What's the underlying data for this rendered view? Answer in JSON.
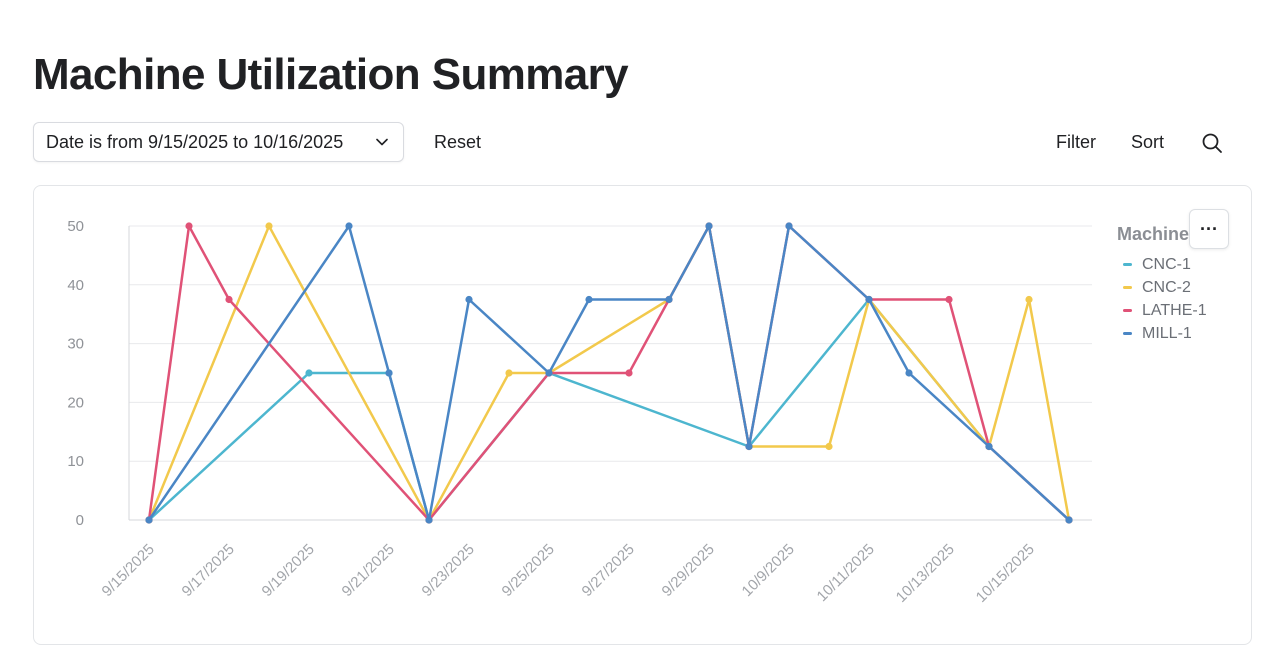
{
  "page": {
    "title": "Machine Utilization Summary"
  },
  "toolbar": {
    "date_filter_label": "Date is from 9/15/2025 to 10/16/2025",
    "reset_label": "Reset",
    "filter_label": "Filter",
    "sort_label": "Sort",
    "search_icon": "search-icon",
    "chevron_icon": "chevron-down-icon"
  },
  "card": {
    "more_label": "···",
    "more_icon": "more-horizontal-icon"
  },
  "legend": {
    "title": "Machine",
    "items": [
      {
        "name": "CNC-1",
        "color": "#4DB6CF"
      },
      {
        "name": "CNC-2",
        "color": "#F2C94C"
      },
      {
        "name": "LATHE-1",
        "color": "#E05277"
      },
      {
        "name": "MILL-1",
        "color": "#4A86C5"
      }
    ]
  },
  "chart_data": {
    "type": "line",
    "title": "Machine Utilization Summary",
    "xlabel": "",
    "ylabel": "",
    "ylim": [
      0,
      50
    ],
    "yticks": [
      0,
      10,
      20,
      30,
      40,
      50
    ],
    "grid": true,
    "legend_title": "Machine",
    "legend_position": "right",
    "x": [
      "9/15/2025",
      "9/16/2025",
      "9/17/2025",
      "9/18/2025",
      "9/19/2025",
      "9/20/2025",
      "9/21/2025",
      "9/22/2025",
      "9/23/2025",
      "9/24/2025",
      "9/25/2025",
      "9/26/2025",
      "9/27/2025",
      "9/28/2025",
      "9/29/2025",
      "9/30/2025",
      "10/9/2025",
      "10/10/2025",
      "10/11/2025",
      "10/12/2025",
      "10/13/2025",
      "10/14/2025",
      "10/15/2025",
      "10/16/2025"
    ],
    "x_tick_labels": [
      "9/15/2025",
      "9/17/2025",
      "9/19/2025",
      "9/21/2025",
      "9/23/2025",
      "9/25/2025",
      "9/27/2025",
      "9/29/2025",
      "10/9/2025",
      "10/11/2025",
      "10/13/2025",
      "10/15/2025"
    ],
    "x_tick_indices": [
      0,
      2,
      4,
      6,
      8,
      10,
      12,
      14,
      16,
      18,
      20,
      22
    ],
    "series": [
      {
        "name": "CNC-1",
        "color": "#4DB6CF",
        "points": [
          [
            0,
            0
          ],
          [
            4,
            25
          ],
          [
            6,
            25
          ],
          [
            7,
            0
          ],
          [
            10,
            25
          ],
          [
            15,
            12.5
          ],
          [
            18,
            37.5
          ],
          [
            21,
            12.5
          ],
          [
            23,
            0
          ]
        ]
      },
      {
        "name": "CNC-2",
        "color": "#F2C94C",
        "points": [
          [
            0,
            0
          ],
          [
            3,
            50
          ],
          [
            7,
            0
          ],
          [
            9,
            25
          ],
          [
            10,
            25
          ],
          [
            13,
            37.5
          ],
          [
            14,
            50
          ],
          [
            15,
            12.5
          ],
          [
            17,
            12.5
          ],
          [
            18,
            37.5
          ],
          [
            21,
            12.5
          ],
          [
            22,
            37.5
          ],
          [
            23,
            0
          ]
        ]
      },
      {
        "name": "LATHE-1",
        "color": "#E05277",
        "points": [
          [
            0,
            0
          ],
          [
            1,
            50
          ],
          [
            2,
            37.5
          ],
          [
            7,
            0
          ],
          [
            10,
            25
          ],
          [
            12,
            25
          ],
          [
            13,
            37.5
          ],
          [
            14,
            50
          ],
          [
            15,
            12.5
          ],
          [
            16,
            50
          ],
          [
            18,
            37.5
          ],
          [
            20,
            37.5
          ],
          [
            21,
            12.5
          ],
          [
            23,
            0
          ]
        ]
      },
      {
        "name": "MILL-1",
        "color": "#4A86C5",
        "points": [
          [
            0,
            0
          ],
          [
            5,
            50
          ],
          [
            6,
            25
          ],
          [
            7,
            0
          ],
          [
            8,
            37.5
          ],
          [
            10,
            25
          ],
          [
            11,
            37.5
          ],
          [
            13,
            37.5
          ],
          [
            14,
            50
          ],
          [
            15,
            12.5
          ],
          [
            16,
            50
          ],
          [
            18,
            37.5
          ],
          [
            19,
            25
          ],
          [
            21,
            12.5
          ],
          [
            23,
            0
          ]
        ]
      }
    ]
  }
}
